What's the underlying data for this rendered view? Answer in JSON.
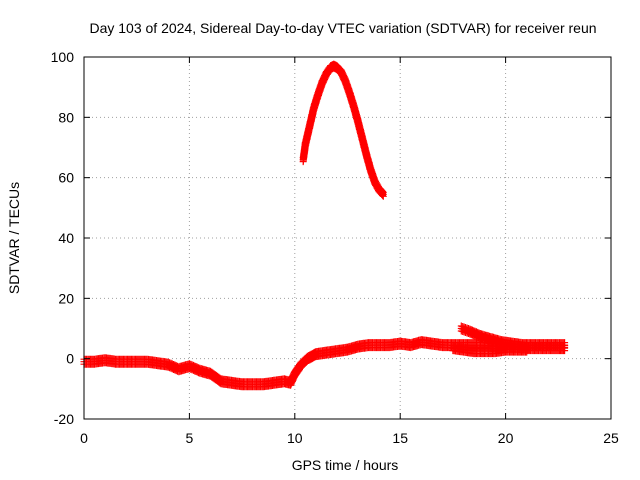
{
  "chart_data": {
    "type": "scatter",
    "title": "Day 103 of 2024, Sidereal Day-to-day VTEC variation (SDTVAR) for receiver reun",
    "xlabel": "GPS time / hours",
    "ylabel": "SDTVAR / TECUs",
    "xlim": [
      0,
      25
    ],
    "ylim": [
      -20,
      100
    ],
    "xticks": [
      0,
      5,
      10,
      15,
      20,
      25
    ],
    "yticks": [
      -20,
      0,
      20,
      40,
      60,
      80,
      100
    ],
    "grid": true,
    "marker": "+",
    "color": "#ff0000",
    "series": [
      {
        "name": "main-band",
        "x": [
          0.0,
          0.5,
          1.0,
          1.5,
          2.0,
          2.5,
          3.0,
          3.5,
          4.0,
          4.5,
          5.0,
          5.5,
          6.0,
          6.5,
          7.0,
          7.5,
          8.0,
          8.5,
          9.0,
          9.5,
          9.8,
          10.0,
          10.3,
          10.6,
          11.0,
          11.5,
          12.0,
          12.5,
          13.0,
          13.5,
          14.0,
          14.5,
          15.0,
          15.5,
          16.0,
          16.5,
          17.0,
          17.5,
          18.0,
          18.5,
          19.0,
          19.5,
          20.0,
          20.5,
          21.0,
          21.5,
          22.0,
          22.5,
          22.8
        ],
        "y": [
          -1.0,
          -1.0,
          -0.5,
          -1.0,
          -1.0,
          -1.0,
          -1.0,
          -1.5,
          -2.0,
          -3.5,
          -2.5,
          -4.0,
          -5.0,
          -7.5,
          -8.0,
          -8.5,
          -8.5,
          -8.5,
          -8.0,
          -7.5,
          -8.0,
          -5.0,
          -2.0,
          0.0,
          1.5,
          2.0,
          2.5,
          3.0,
          4.0,
          4.5,
          4.5,
          4.5,
          5.0,
          4.5,
          5.5,
          5.0,
          4.5,
          4.5,
          4.5,
          4.5,
          4.5,
          4.0,
          4.0,
          4.0,
          3.5,
          3.5,
          3.5,
          3.5,
          3.5
        ]
      },
      {
        "name": "upper-band",
        "x": [
          17.9,
          18.3,
          18.8,
          19.3,
          19.8,
          20.3,
          20.8,
          21.3,
          21.8,
          22.3,
          22.8
        ],
        "y": [
          10.0,
          9.0,
          7.5,
          6.5,
          5.5,
          5.0,
          4.5,
          4.5,
          4.5,
          4.5,
          4.5
        ]
      },
      {
        "name": "lower-band",
        "x": [
          17.5,
          18.0,
          18.5,
          19.0,
          19.5,
          20.0,
          20.5,
          21.0
        ],
        "y": [
          3.5,
          3.0,
          2.5,
          2.5,
          2.5,
          3.0,
          3.0,
          3.0
        ]
      },
      {
        "name": "arc",
        "x": [
          10.4,
          10.5,
          10.7,
          10.9,
          11.1,
          11.3,
          11.5,
          11.7,
          11.85,
          12.0,
          12.2,
          12.4,
          12.6,
          12.8,
          13.0,
          13.2,
          13.4,
          13.6,
          13.8,
          14.0,
          14.2
        ],
        "y": [
          66.0,
          71.0,
          77.0,
          83.0,
          87.5,
          91.5,
          94.5,
          96.5,
          97.0,
          96.5,
          95.0,
          92.0,
          88.0,
          83.5,
          78.5,
          73.0,
          67.5,
          62.5,
          58.5,
          56.0,
          54.5
        ]
      }
    ]
  }
}
